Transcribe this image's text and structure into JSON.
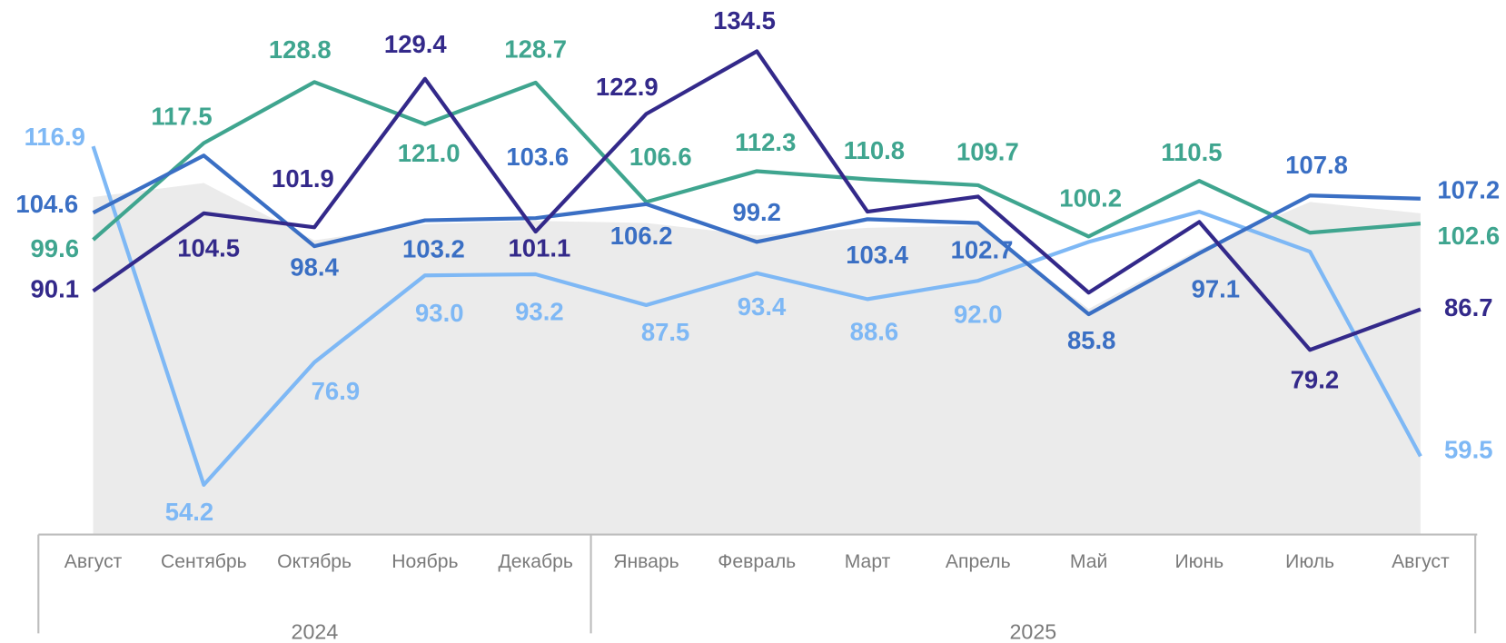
{
  "chart_data": {
    "type": "line",
    "categories": [
      "Август",
      "Сентябрь",
      "Октябрь",
      "Ноябрь",
      "Декабрь",
      "Январь",
      "Февраль",
      "Март",
      "Апрель",
      "Май",
      "Июнь",
      "Июль",
      "Август"
    ],
    "years": [
      "2024",
      "2024",
      "2024",
      "2024",
      "2024",
      "2025",
      "2025",
      "2025",
      "2025",
      "2025",
      "2025",
      "2025",
      "2025"
    ],
    "ylim": [
      45,
      144
    ],
    "area": {
      "color": "#ebebeb",
      "values": [
        107.5,
        110.1,
        99.5,
        102.5,
        103.1,
        102.7,
        100.4,
        101.8,
        102.2,
        86.8,
        97.8,
        106.6,
        104.5
      ]
    },
    "series": [
      {
        "color": "#7eb8f5",
        "values": [
          116.9,
          54.2,
          76.9,
          93.0,
          93.2,
          87.5,
          93.4,
          88.6,
          92.0,
          99.2,
          104.8,
          97.4,
          59.5
        ],
        "value_labels": [
          "116.9",
          "54.2",
          "76.9",
          "93.0",
          "93.2",
          "87.5",
          "93.4",
          "88.6",
          "92.0",
          null,
          null,
          null,
          "59.5"
        ]
      },
      {
        "color": "#3fa58f",
        "values": [
          99.6,
          117.5,
          128.8,
          121.0,
          128.7,
          106.6,
          112.3,
          110.8,
          109.7,
          100.2,
          110.5,
          100.9,
          102.6
        ],
        "value_labels": [
          "99.6",
          "117.5",
          "128.8",
          "121.0",
          "128.7",
          "106.6",
          "112.3",
          "110.8",
          "109.7",
          "100.2",
          "110.5",
          null,
          "102.6"
        ]
      },
      {
        "color": "#3a6fc4",
        "values": [
          104.6,
          115.2,
          98.4,
          103.2,
          103.6,
          106.2,
          99.2,
          103.4,
          102.7,
          85.8,
          97.1,
          107.8,
          107.2
        ],
        "value_labels": [
          "104.6",
          null,
          "98.4",
          "103.2",
          "103.6",
          "106.2",
          "99.2",
          "103.4",
          "102.7",
          "85.8",
          "97.1",
          "107.8",
          "107.2"
        ]
      },
      {
        "color": "#33298a",
        "values": [
          90.1,
          104.5,
          101.9,
          129.4,
          101.1,
          122.9,
          134.5,
          104.8,
          107.6,
          89.8,
          102.9,
          79.2,
          86.7
        ],
        "value_labels": [
          "90.1",
          "104.5",
          "101.9",
          "129.4",
          "101.1",
          "122.9",
          "134.5",
          null,
          null,
          null,
          null,
          "79.2",
          "86.7"
        ]
      }
    ]
  }
}
